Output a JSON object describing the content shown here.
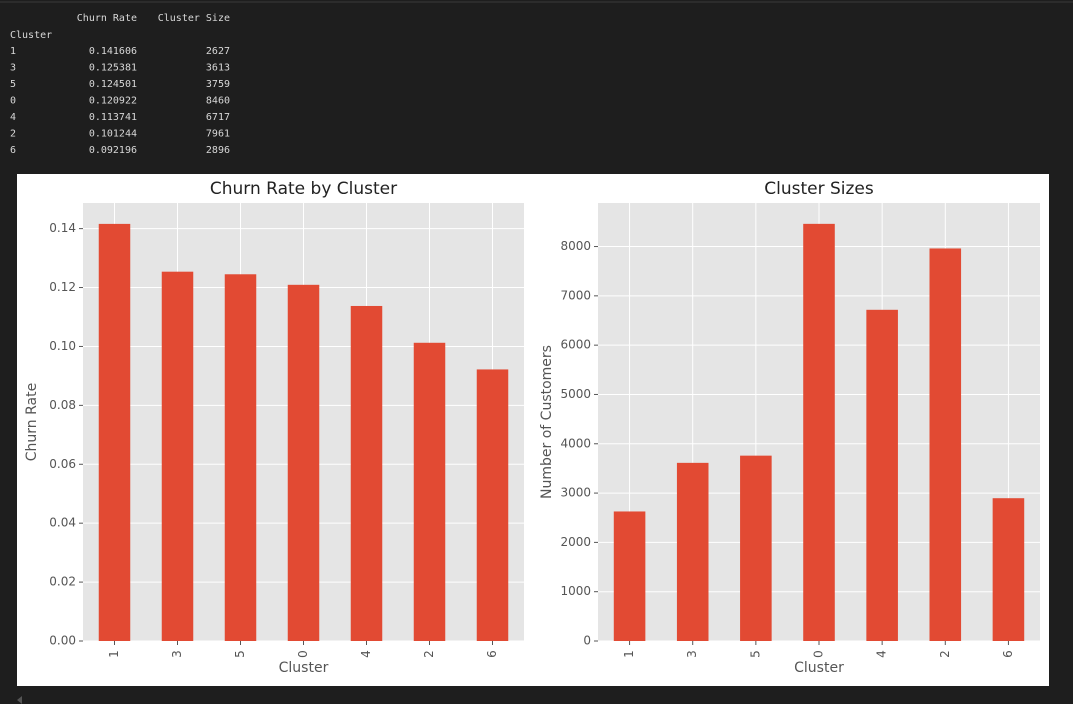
{
  "table": {
    "columns": [
      "Churn Rate",
      "Cluster Size"
    ],
    "index_name": "Cluster",
    "rows": [
      [
        "1",
        "0.141606",
        "2627"
      ],
      [
        "3",
        "0.125381",
        "3613"
      ],
      [
        "5",
        "0.124501",
        "3759"
      ],
      [
        "0",
        "0.120922",
        "8460"
      ],
      [
        "4",
        "0.113741",
        "6717"
      ],
      [
        "2",
        "0.101244",
        "7961"
      ],
      [
        "6",
        "0.092196",
        "2896"
      ]
    ]
  },
  "chart_data": [
    {
      "type": "bar",
      "title": "Churn Rate by Cluster",
      "x_label": "Cluster",
      "y_label": "Churn Rate",
      "categories": [
        "1",
        "3",
        "5",
        "0",
        "4",
        "2",
        "6"
      ],
      "values": [
        0.141606,
        0.125381,
        0.124501,
        0.120922,
        0.113741,
        0.101244,
        0.092196
      ],
      "color": "#e24a33",
      "ylim": [
        0,
        0.1487
      ],
      "grid": true,
      "yticks": [
        {
          "value": 0,
          "label": "0.00"
        },
        {
          "value": 0.02,
          "label": "0.02"
        },
        {
          "value": 0.04,
          "label": "0.04"
        },
        {
          "value": 0.06,
          "label": "0.06"
        },
        {
          "value": 0.08,
          "label": "0.08"
        },
        {
          "value": 0.1,
          "label": "0.10"
        },
        {
          "value": 0.12,
          "label": "0.12"
        },
        {
          "value": 0.14,
          "label": "0.14"
        }
      ]
    },
    {
      "type": "bar",
      "title": "Cluster Sizes",
      "x_label": "Cluster",
      "y_label": "Number of Customers",
      "categories": [
        "1",
        "3",
        "5",
        "0",
        "4",
        "2",
        "6"
      ],
      "values": [
        2627,
        3613,
        3759,
        8460,
        6717,
        7961,
        2896
      ],
      "color": "#e24a33",
      "ylim": [
        0,
        8883
      ],
      "grid": true,
      "yticks": [
        0,
        1000,
        2000,
        3000,
        4000,
        5000,
        6000,
        7000,
        8000
      ]
    }
  ]
}
